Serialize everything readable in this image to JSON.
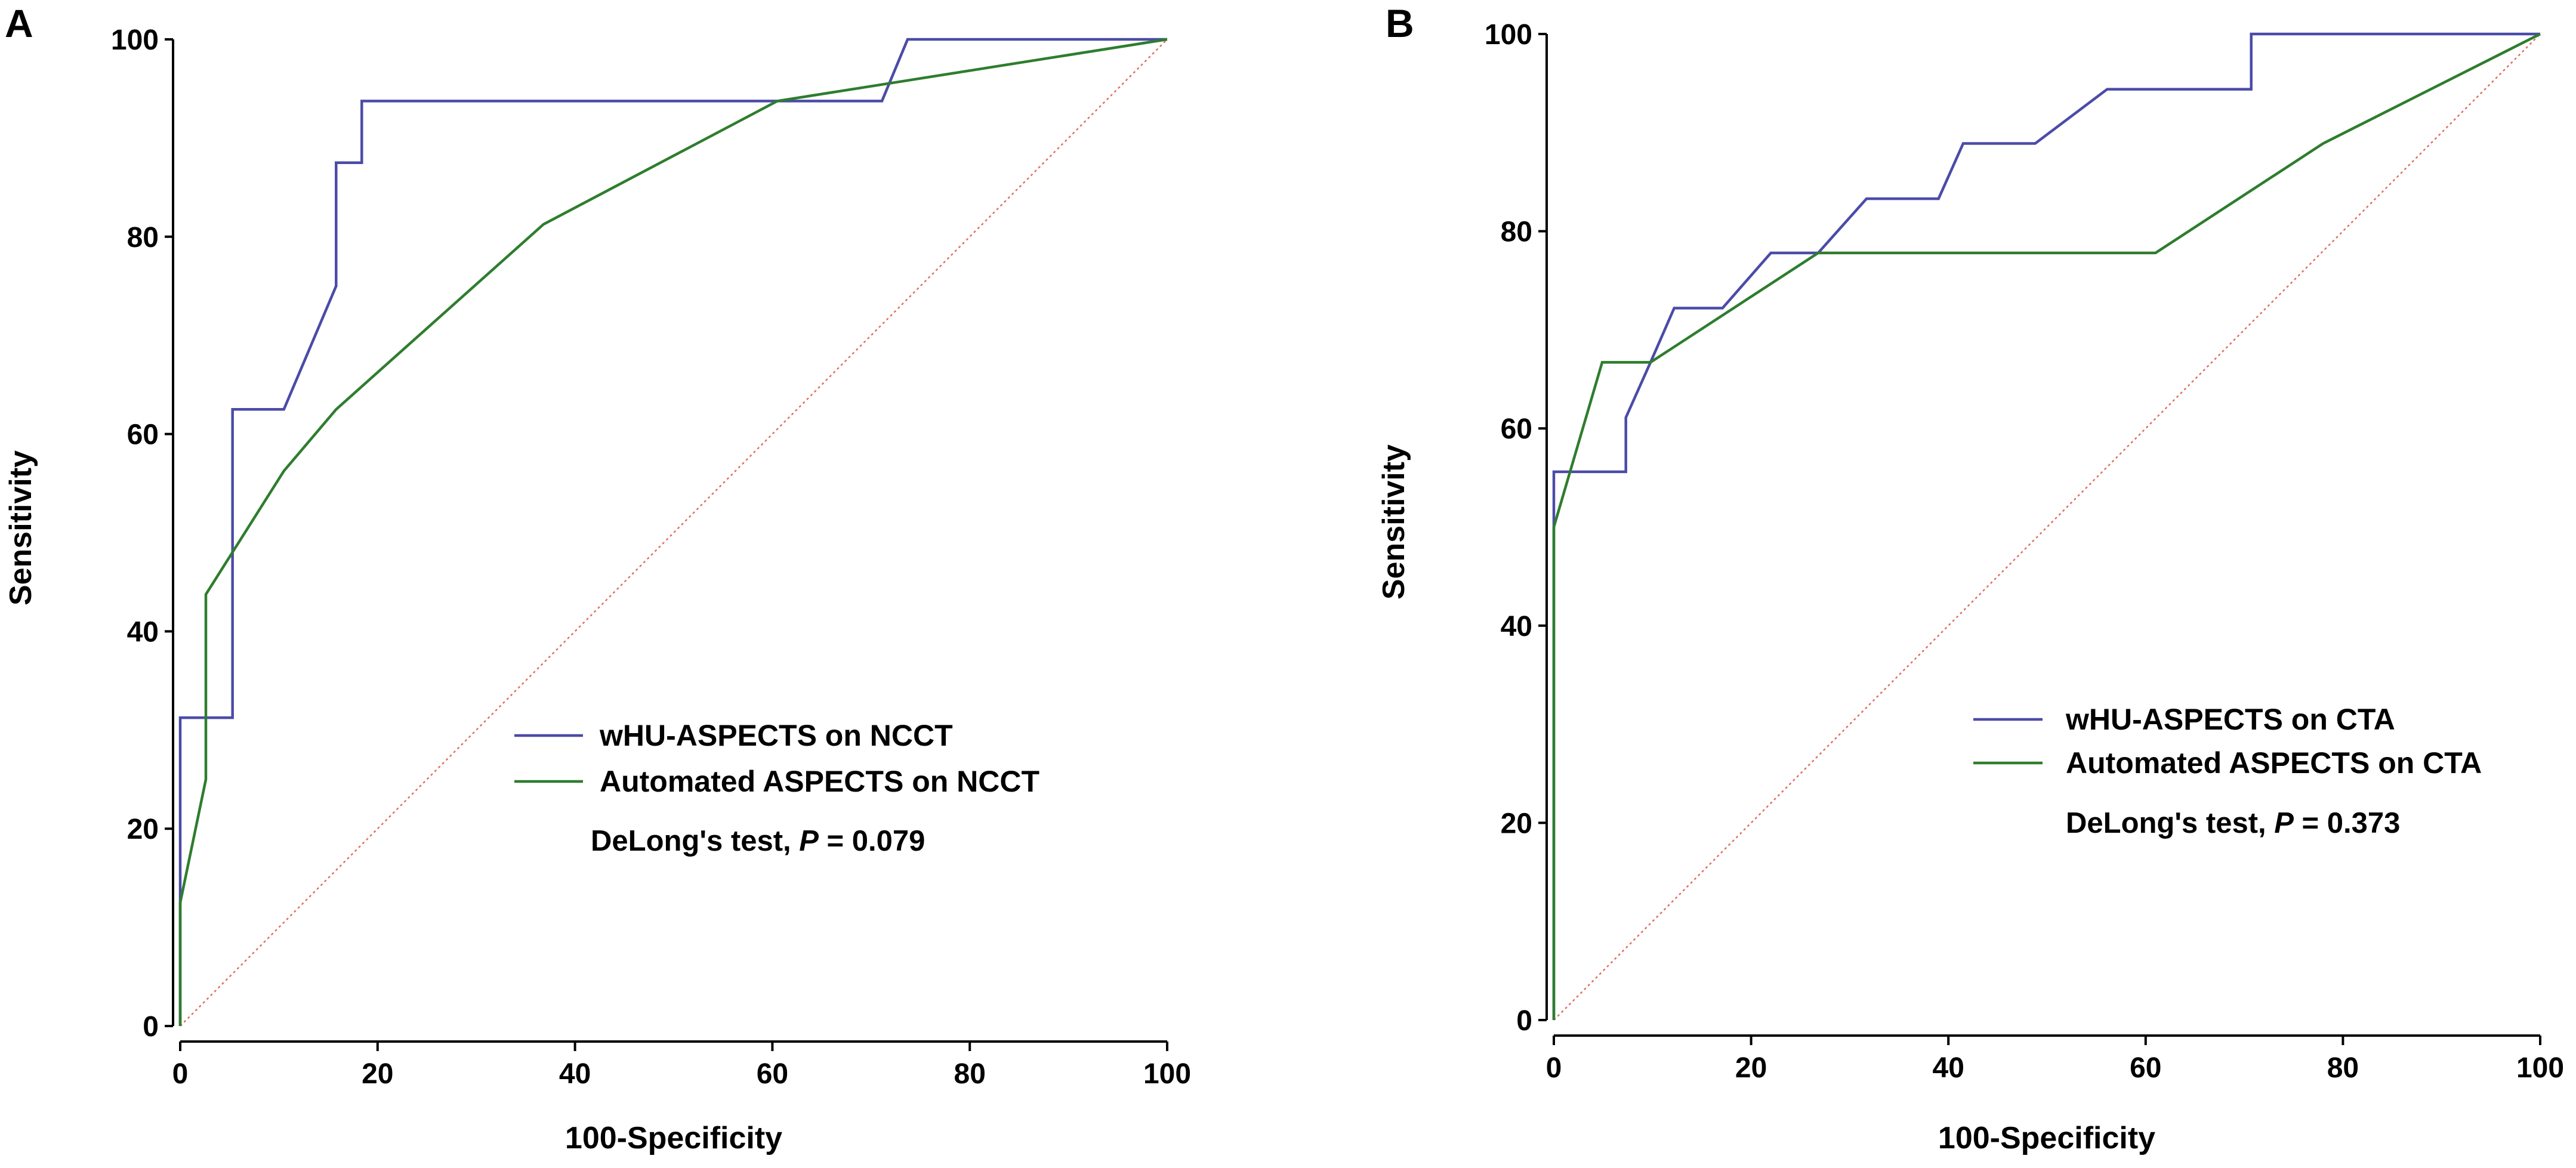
{
  "chart_data": [
    {
      "panel_label": "A",
      "type": "line",
      "xlabel": "100-Specificity",
      "ylabel": "Sensitivity",
      "xlim": [
        0,
        100
      ],
      "ylim": [
        0,
        100
      ],
      "x_ticks": [
        0,
        20,
        40,
        60,
        80,
        100
      ],
      "y_ticks": [
        0,
        20,
        40,
        60,
        80,
        100
      ],
      "x_tick_labels": [
        "0",
        "20",
        "40",
        "60",
        "80",
        "100"
      ],
      "y_tick_labels": [
        "0",
        "20",
        "40",
        "60",
        "80",
        "100"
      ],
      "grid": false,
      "legend_position": "bottom-right",
      "reference_line": {
        "name": "chance",
        "color": "#e07060",
        "points": [
          [
            0,
            0
          ],
          [
            100,
            100
          ]
        ]
      },
      "series": [
        {
          "name": "wHU-ASPECTS on NCCT",
          "color": "#4b4ba8",
          "step": true,
          "points": [
            [
              0,
              0
            ],
            [
              0,
              31.25
            ],
            [
              5.3,
              31.25
            ],
            [
              5.3,
              62.5
            ],
            [
              10.5,
              62.5
            ],
            [
              15.8,
              75
            ],
            [
              15.8,
              87.5
            ],
            [
              18.4,
              87.5
            ],
            [
              18.4,
              93.75
            ],
            [
              71.1,
              93.75
            ],
            [
              73.7,
              100
            ],
            [
              100,
              100
            ]
          ]
        },
        {
          "name": "Automated ASPECTS on NCCT",
          "color": "#2e7d2e",
          "step": false,
          "points": [
            [
              0,
              0
            ],
            [
              0,
              12.5
            ],
            [
              2.6,
              25
            ],
            [
              2.6,
              43.75
            ],
            [
              10.5,
              56.25
            ],
            [
              15.8,
              62.5
            ],
            [
              36.8,
              81.25
            ],
            [
              60.5,
              93.75
            ],
            [
              100,
              100
            ]
          ]
        }
      ],
      "annotation": {
        "prefix": "DeLong's test, ",
        "p_symbol": "P",
        "suffix": " = 0.079"
      }
    },
    {
      "panel_label": "B",
      "type": "line",
      "xlabel": "100-Specificity",
      "ylabel": "Sensitivity",
      "xlim": [
        0,
        100
      ],
      "ylim": [
        0,
        100
      ],
      "x_ticks": [
        0,
        20,
        40,
        60,
        80,
        100
      ],
      "y_ticks": [
        0,
        20,
        40,
        60,
        80,
        100
      ],
      "x_tick_labels": [
        "0",
        "20",
        "40",
        "60",
        "80",
        "100"
      ],
      "y_tick_labels": [
        "0",
        "20",
        "40",
        "60",
        "80",
        "100"
      ],
      "grid": false,
      "legend_position": "bottom-right",
      "reference_line": {
        "name": "chance",
        "color": "#e07060",
        "points": [
          [
            0,
            0
          ],
          [
            100,
            100
          ]
        ]
      },
      "series": [
        {
          "name": "wHU-ASPECTS on CTA",
          "color": "#4b4ba8",
          "step": true,
          "points": [
            [
              0,
              0
            ],
            [
              0,
              50
            ],
            [
              0,
              55.6
            ],
            [
              7.3,
              55.6
            ],
            [
              7.3,
              61.1
            ],
            [
              9.8,
              66.7
            ],
            [
              12.2,
              72.2
            ],
            [
              17.1,
              72.2
            ],
            [
              22,
              77.8
            ],
            [
              26.8,
              77.8
            ],
            [
              31.7,
              83.3
            ],
            [
              39,
              83.3
            ],
            [
              41.5,
              88.9
            ],
            [
              48.8,
              88.9
            ],
            [
              56.1,
              94.4
            ],
            [
              70.7,
              94.4
            ],
            [
              70.7,
              100
            ],
            [
              100,
              100
            ]
          ]
        },
        {
          "name": "Automated ASPECTS on CTA",
          "color": "#2e7d2e",
          "step": false,
          "points": [
            [
              0,
              0
            ],
            [
              0,
              50
            ],
            [
              4.9,
              66.7
            ],
            [
              9.8,
              66.7
            ],
            [
              26.8,
              77.8
            ],
            [
              61,
              77.8
            ],
            [
              78,
              88.9
            ],
            [
              100,
              100
            ]
          ]
        }
      ],
      "annotation": {
        "prefix": "DeLong's test, ",
        "p_symbol": "P",
        "suffix": " = 0.373"
      }
    }
  ]
}
